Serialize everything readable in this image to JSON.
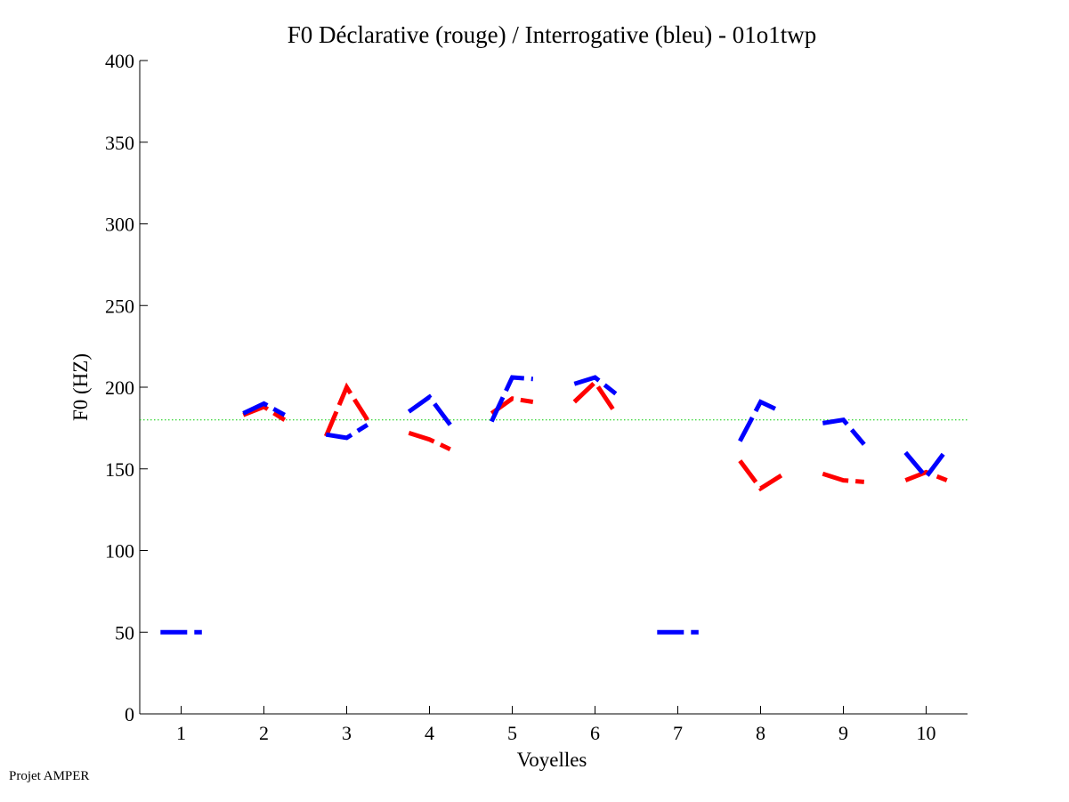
{
  "footer": "Projet AMPER",
  "chart_data": {
    "type": "line",
    "title": "F0 Déclarative (rouge) / Interrogative (bleu) - 01o1twp",
    "xlabel": "Voyelles",
    "ylabel": "F0 (HZ)",
    "xlim": [
      0.5,
      10.5
    ],
    "ylim": [
      0,
      400
    ],
    "xticks": [
      1,
      2,
      3,
      4,
      5,
      6,
      7,
      8,
      9,
      10
    ],
    "yticks": [
      0,
      50,
      100,
      150,
      200,
      250,
      300,
      350,
      400
    ],
    "reference_line": {
      "y": 180,
      "color": "#00cc00",
      "style": "dotted"
    },
    "series": [
      {
        "name": "Déclarative",
        "color": "#ff0000",
        "segments": [
          {
            "vowel": 2,
            "x": [
              1.75,
              2.0,
              2.25
            ],
            "y": [
              183,
              188,
              180
            ]
          },
          {
            "vowel": 3,
            "x": [
              2.75,
              3.0,
              3.25
            ],
            "y": [
              170,
              200,
              180
            ]
          },
          {
            "vowel": 4,
            "x": [
              3.75,
              4.0,
              4.25
            ],
            "y": [
              172,
              168,
              162
            ]
          },
          {
            "vowel": 5,
            "x": [
              4.75,
              5.0,
              5.25
            ],
            "y": [
              184,
              193,
              191
            ]
          },
          {
            "vowel": 6,
            "x": [
              5.75,
              6.0,
              6.25
            ],
            "y": [
              191,
              203,
              184
            ]
          },
          {
            "vowel": 8,
            "x": [
              7.75,
              8.0,
              8.25
            ],
            "y": [
              155,
              138,
              146
            ]
          },
          {
            "vowel": 9,
            "x": [
              8.75,
              9.0,
              9.25
            ],
            "y": [
              147,
              143,
              142
            ]
          },
          {
            "vowel": 10,
            "x": [
              9.75,
              10.0,
              10.25
            ],
            "y": [
              143,
              148,
              143
            ]
          }
        ]
      },
      {
        "name": "Interrogative",
        "color": "#0000ff",
        "segments": [
          {
            "vowel": 1,
            "x": [
              0.75,
              1.0,
              1.25
            ],
            "y": [
              50,
              50,
              50
            ]
          },
          {
            "vowel": 2,
            "x": [
              1.75,
              2.0,
              2.25
            ],
            "y": [
              184,
              190,
              183
            ]
          },
          {
            "vowel": 3,
            "x": [
              2.75,
              3.0,
              3.25
            ],
            "y": [
              171,
              169,
              177
            ]
          },
          {
            "vowel": 4,
            "x": [
              3.75,
              4.0,
              4.25
            ],
            "y": [
              185,
              194,
              177
            ]
          },
          {
            "vowel": 5,
            "x": [
              4.75,
              5.0,
              5.25
            ],
            "y": [
              179,
              206,
              205
            ]
          },
          {
            "vowel": 6,
            "x": [
              5.75,
              6.0,
              6.25
            ],
            "y": [
              202,
              206,
              196
            ]
          },
          {
            "vowel": 7,
            "x": [
              6.75,
              7.0,
              7.25
            ],
            "y": [
              50,
              50,
              50
            ]
          },
          {
            "vowel": 8,
            "x": [
              7.75,
              8.0,
              8.25
            ],
            "y": [
              167,
              191,
              185
            ]
          },
          {
            "vowel": 9,
            "x": [
              8.75,
              9.0,
              9.25
            ],
            "y": [
              178,
              180,
              165
            ]
          },
          {
            "vowel": 10,
            "x": [
              9.75,
              10.0,
              10.25
            ],
            "y": [
              160,
              145,
              162
            ]
          }
        ]
      }
    ]
  }
}
